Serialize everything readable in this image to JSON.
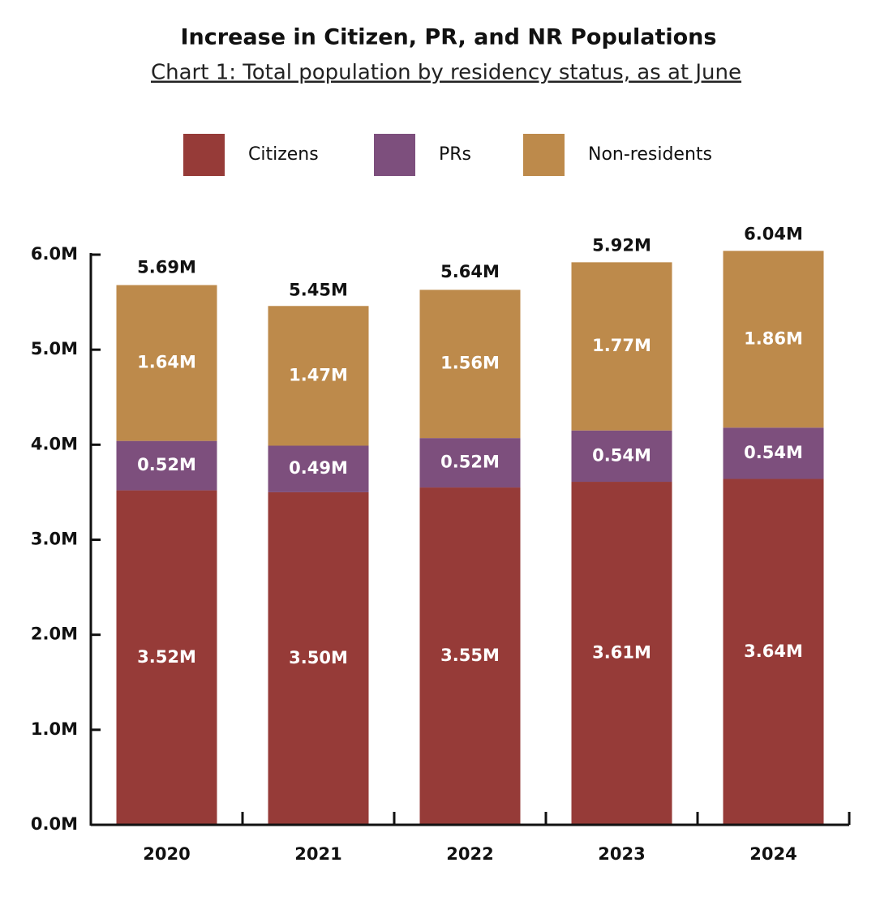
{
  "chart_data": {
    "type": "stacked_bar",
    "title": "Increase in Citizen, PR, and NR Populations",
    "subtitle": "Chart 1: Total population by residency status, as at June",
    "categories": [
      "2020",
      "2021",
      "2022",
      "2023",
      "2024"
    ],
    "series": [
      {
        "name": "Citizens",
        "color": "#963b38",
        "values": [
          3.52,
          3.5,
          3.55,
          3.61,
          3.64
        ],
        "value_labels": [
          "3.52M",
          "3.50M",
          "3.55M",
          "3.61M",
          "3.64M"
        ]
      },
      {
        "name": "PRs",
        "color": "#7d4f7d",
        "values": [
          0.52,
          0.49,
          0.52,
          0.54,
          0.54
        ],
        "value_labels": [
          "0.52M",
          "0.49M",
          "0.52M",
          "0.54M",
          "0.54M"
        ]
      },
      {
        "name": "Non-residents",
        "color": "#bd8a4b",
        "values": [
          1.64,
          1.47,
          1.56,
          1.77,
          1.86
        ],
        "value_labels": [
          "1.64M",
          "1.47M",
          "1.56M",
          "1.77M",
          "1.86M"
        ]
      }
    ],
    "totals": {
      "values": [
        5.69,
        5.45,
        5.64,
        5.92,
        6.04
      ],
      "value_labels": [
        "5.69M",
        "5.45M",
        "5.64M",
        "5.92M",
        "6.04M"
      ]
    },
    "ylim": [
      0,
      6
    ],
    "yticks": [
      {
        "value": 0,
        "label": "0.0M"
      },
      {
        "value": 1,
        "label": "1.0M"
      },
      {
        "value": 2,
        "label": "2.0M"
      },
      {
        "value": 3,
        "label": "3.0M"
      },
      {
        "value": 4,
        "label": "4.0M"
      },
      {
        "value": 5,
        "label": "5.0M"
      },
      {
        "value": 6,
        "label": "6.0M"
      }
    ],
    "legend": "top"
  }
}
